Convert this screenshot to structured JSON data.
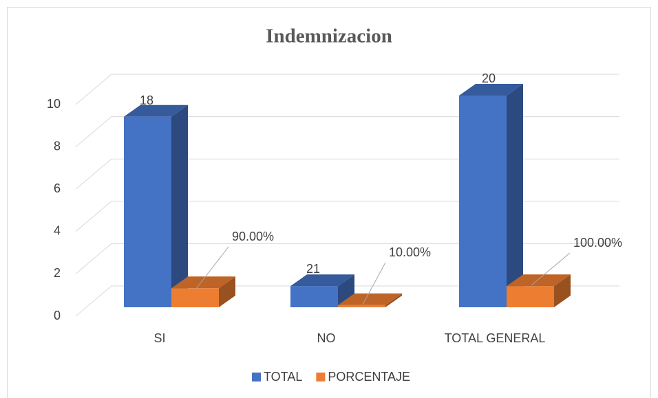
{
  "chart_data": {
    "type": "bar3d",
    "title": "Indemnizacion",
    "categories": [
      "SI",
      "NO",
      "TOTAL GENERAL"
    ],
    "series": [
      {
        "name": "TOTAL",
        "color": "#4472c4",
        "values": [
          9,
          1,
          10
        ]
      },
      {
        "name": "PORCENTAJE",
        "color": "#ed7d31",
        "values": [
          0.9,
          0.1,
          1.0
        ],
        "value_labels": [
          "90.00%",
          "10.00%",
          "100.00%"
        ]
      }
    ],
    "annotations": [
      "18",
      "21",
      "20"
    ],
    "ylim": [
      0,
      10
    ],
    "yticks": [
      0,
      2,
      4,
      6,
      8,
      10
    ],
    "grid": true,
    "legend": "bottom"
  }
}
